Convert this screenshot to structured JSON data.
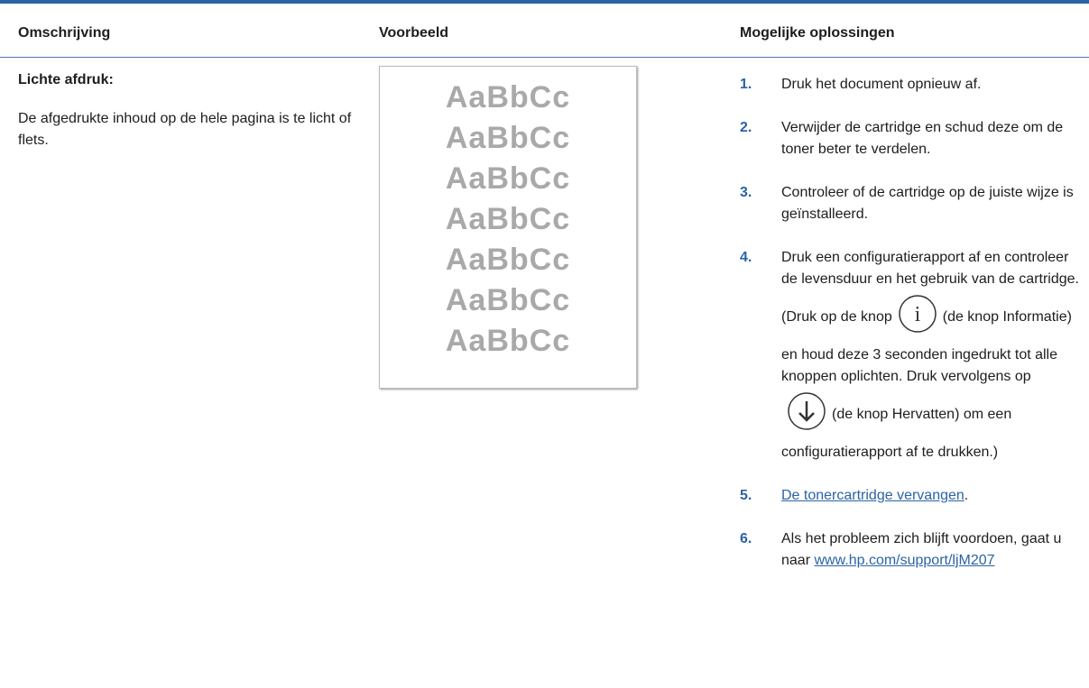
{
  "table": {
    "headers": [
      "Omschrijving",
      "Voorbeeld",
      "Mogelijke oplossingen"
    ],
    "row": {
      "title": "Lichte afdruk:",
      "description": "De afgedrukte inhoud op de hele pagina is te licht of flets.",
      "sample_lines": [
        "AaBbCc",
        "AaBbCc",
        "AaBbCc",
        "AaBbCc",
        "AaBbCc",
        "AaBbCc",
        "AaBbCc"
      ],
      "solutions": [
        {
          "number": "1.",
          "parts": [
            {
              "text": "Druk het document opnieuw af."
            }
          ]
        },
        {
          "number": "2.",
          "parts": [
            {
              "text": "Verwijder de cartridge en schud deze om de toner beter te verdelen."
            }
          ]
        },
        {
          "number": "3.",
          "parts": [
            {
              "text": "Controleer of de cartridge op de juiste wijze is geïnstalleerd."
            }
          ]
        },
        {
          "number": "4.",
          "parts": [
            {
              "text": "Druk een configuratierapport af en controleer de levensduur en het gebruik van de cartridge. (Druk op de knop"
            },
            {
              "icon": "info"
            },
            {
              "text": "(de knop Informatie) en houd deze 3 seconden ingedrukt tot alle knoppen oplichten. Druk vervolgens op"
            },
            {
              "icon": "resume"
            },
            {
              "text": "(de knop Hervatten) om een configuratierapport af te drukken.)"
            }
          ]
        },
        {
          "number": "5.",
          "parts": [
            {
              "text": "De tonercartridge vervangen",
              "link": true
            },
            {
              "text": "."
            }
          ]
        },
        {
          "number": "6.",
          "parts": [
            {
              "text": "Als het probleem zich blijft voordoen, gaat u naar "
            },
            {
              "text": "www.hp.com/support/ljM207",
              "link": true
            }
          ]
        }
      ]
    }
  }
}
